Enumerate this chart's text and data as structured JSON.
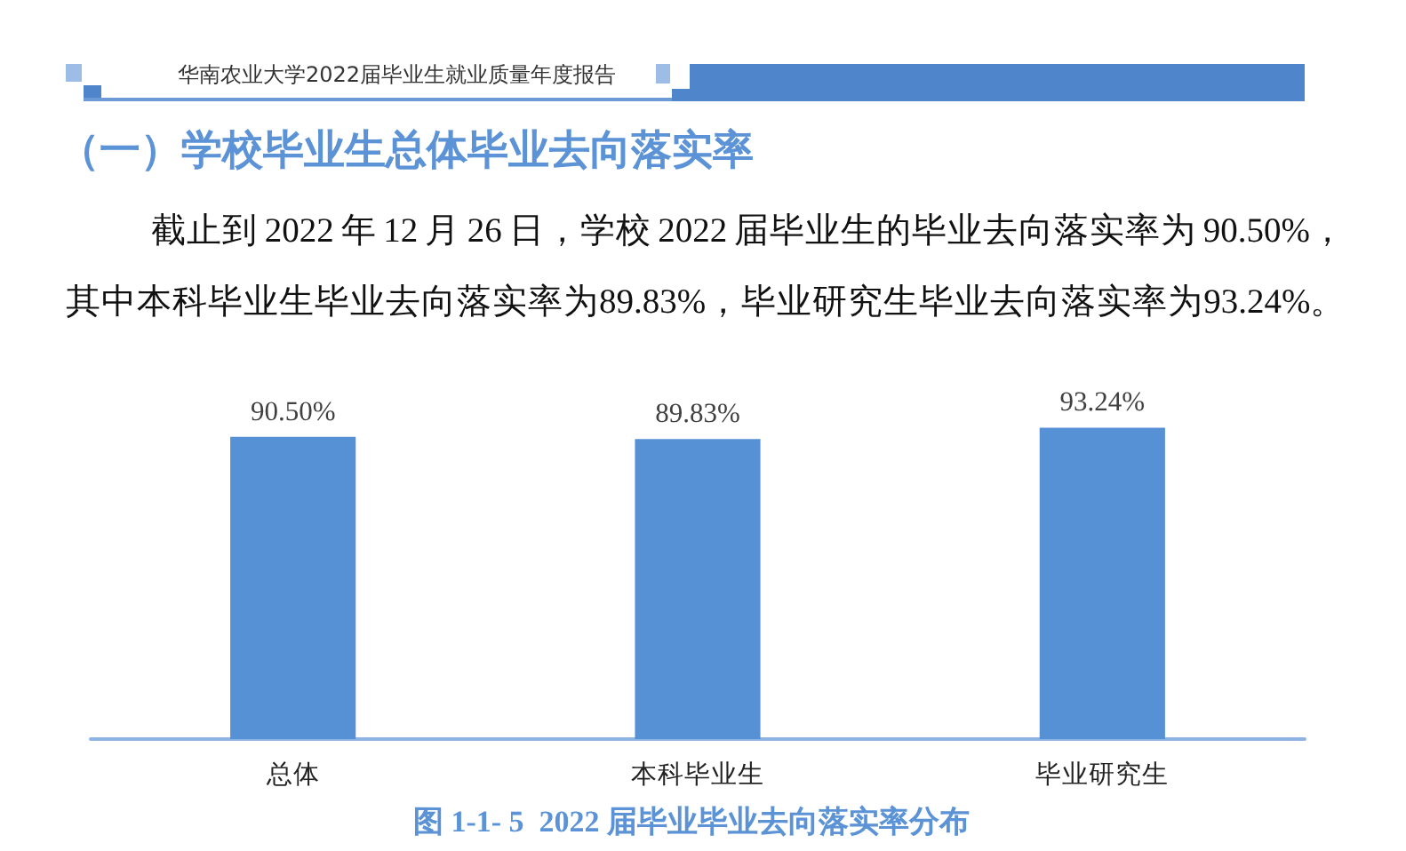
{
  "chart_data": {
    "type": "bar",
    "title": "（一）学校毕业生总体毕业去向落实率",
    "subtitle": "截止到 2022 年 12 月 26 日，学校 2022 届毕业生的毕业去向落实率为 90.50%，其中本科毕业生毕业去向落实率为89.83%，毕业研究生毕业去向落实率为93.24%。",
    "annotations": [
      "华南农业大学2022届毕业生就业质量年度报告",
      "图 1-1- 5  2022 届毕业毕业去向落实率分布"
    ],
    "categories": [
      "总体",
      "本科毕业生",
      "毕业研究生"
    ],
    "values": [
      90.5,
      89.83,
      93.24
    ],
    "value_labels": [
      "90.50%",
      "89.83%",
      "93.24%"
    ],
    "color": "#5690d5",
    "tick_labels": "x"
  }
}
